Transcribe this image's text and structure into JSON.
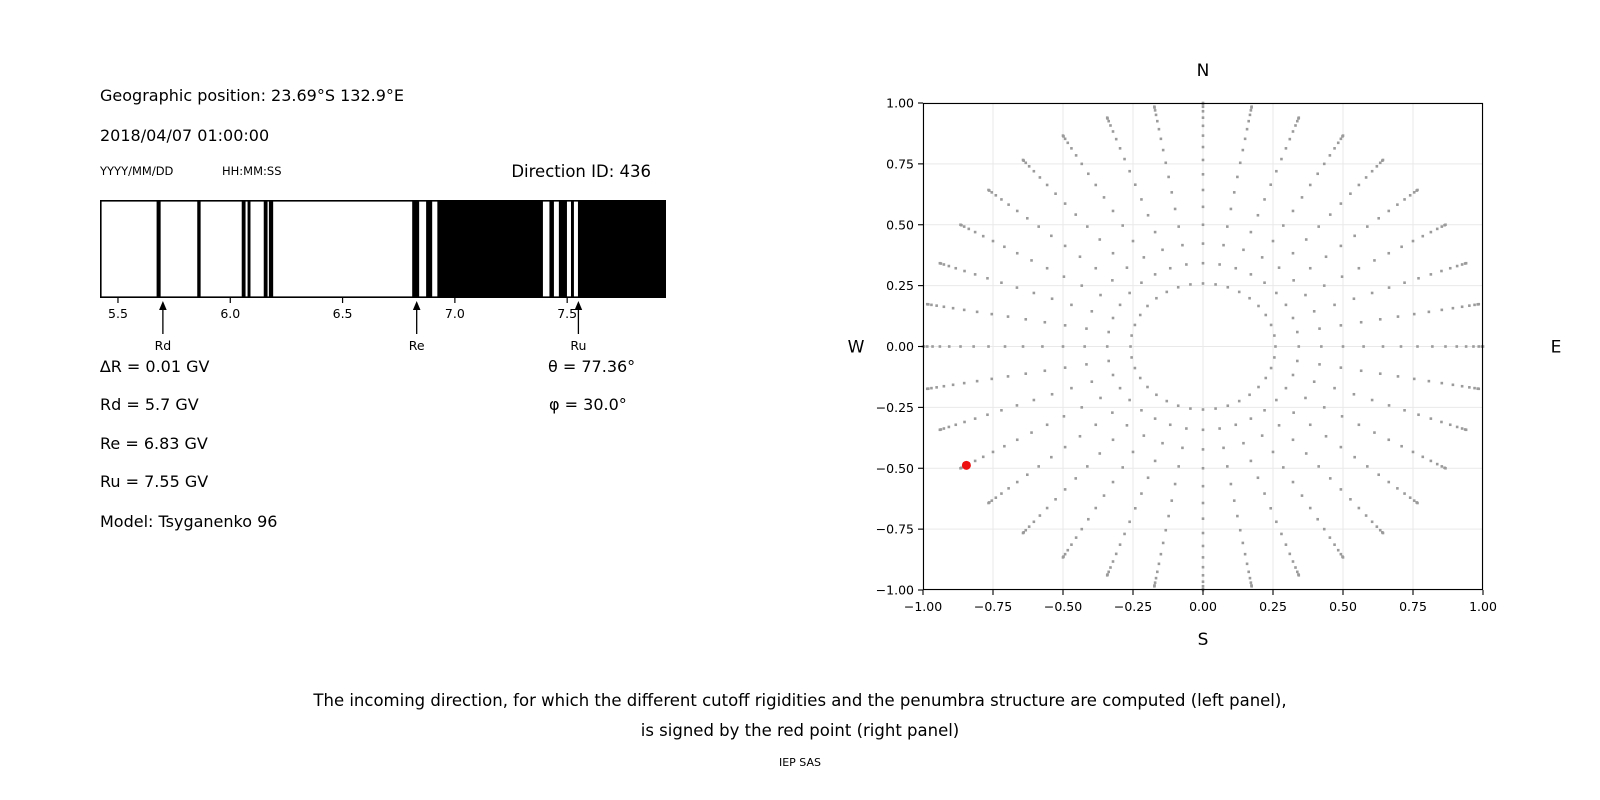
{
  "header": {
    "geo_position": "Geographic position: 23.69°S 132.9°E",
    "datetime": "2018/04/07 01:00:00",
    "date_format": "YYYY/MM/DD",
    "time_format": "HH:MM:SS",
    "direction_id": "Direction ID: 436"
  },
  "left_values": {
    "delta_r": "∆R = 0.01 GV",
    "rd": "Rd = 5.7 GV",
    "re": "Re = 6.83 GV",
    "ru": "Ru = 7.55 GV",
    "model": "Model: Tsyganenko 96",
    "theta": "θ = 77.36°",
    "phi": "φ = 30.0°"
  },
  "caption": {
    "line1": "The incoming direction, for which the different cutoff rigidities and the penumbra structure are computed (left panel),",
    "line2": "is signed by the red point (right panel)",
    "footer": "IEP SAS"
  },
  "colors": {
    "bar_black": "#000000",
    "dot_gray": "#9b9b9b",
    "red_point": "#ee1111",
    "grid": "#e9e9e9",
    "spine": "#000000"
  },
  "chart_data": [
    {
      "type": "bar",
      "name": "penumbra-structure",
      "xlim": [
        5.42,
        7.94
      ],
      "xticks": [
        5.5,
        6.0,
        6.5,
        7.0,
        7.5
      ],
      "xtick_labels": [
        "5.5",
        "6.0",
        "6.5",
        "7.0",
        "7.5"
      ],
      "black_intervals_gv": [
        [
          5.672,
          5.69
        ],
        [
          5.853,
          5.868
        ],
        [
          6.051,
          6.068
        ],
        [
          6.077,
          6.09
        ],
        [
          6.149,
          6.166
        ],
        [
          6.172,
          6.191
        ],
        [
          6.81,
          6.841
        ],
        [
          6.872,
          6.899
        ],
        [
          6.922,
          7.392
        ],
        [
          7.421,
          7.441
        ],
        [
          7.463,
          7.499
        ],
        [
          7.517,
          7.53
        ],
        [
          7.548,
          7.94
        ]
      ],
      "annotations": [
        {
          "label": "Rd",
          "x_gv": 5.7
        },
        {
          "label": "Re",
          "x_gv": 6.83
        },
        {
          "label": "Ru",
          "x_gv": 7.55
        }
      ]
    },
    {
      "type": "scatter",
      "name": "incoming-direction-map",
      "compass_labels": {
        "top": "N",
        "bottom": "S",
        "left": "W",
        "right": "E"
      },
      "xlim": [
        -1,
        1
      ],
      "ylim": [
        -1,
        1
      ],
      "grid": true,
      "xticks": [
        -1.0,
        -0.75,
        -0.5,
        -0.25,
        0.0,
        0.25,
        0.5,
        0.75,
        1.0
      ],
      "yticks": [
        -1.0,
        -0.75,
        -0.5,
        -0.25,
        0.0,
        0.25,
        0.5,
        0.75,
        1.0
      ],
      "xtick_labels": [
        "−1.00",
        "−0.75",
        "−0.50",
        "−0.25",
        "0.00",
        "0.25",
        "0.50",
        "0.75",
        "1.00"
      ],
      "ytick_labels": [
        "−1.00",
        "−0.75",
        "−0.50",
        "−0.25",
        "0.00",
        "0.25",
        "0.50",
        "0.75",
        "1.00"
      ],
      "dot_grid": {
        "azimuth_deg_start": 0,
        "azimuth_deg_step": 10,
        "azimuth_count": 36,
        "zenith_deg_min": 15,
        "zenith_deg_max": 90,
        "zenith_deg_step": 5,
        "radius_mapping": "sin(zenith)"
      },
      "red_point": {
        "x": -0.845,
        "y": -0.488
      }
    }
  ]
}
